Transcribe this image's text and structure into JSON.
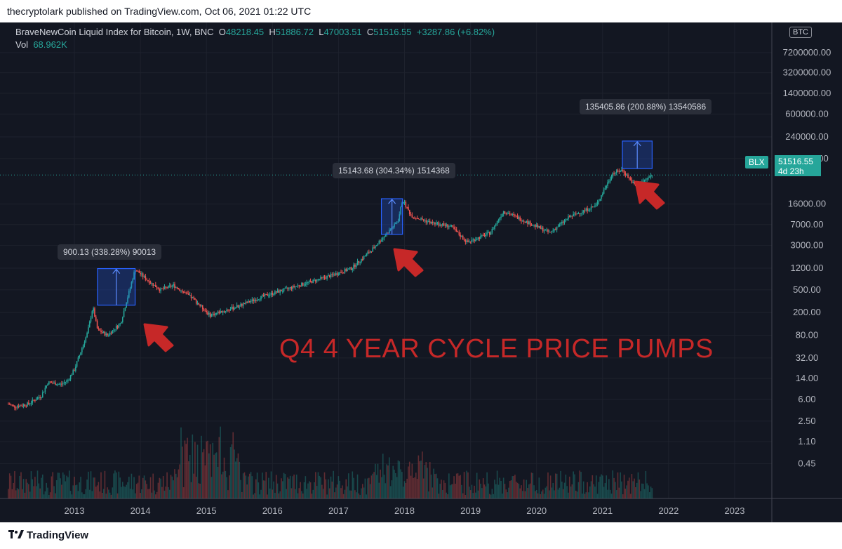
{
  "header": {
    "publisher": "thecryptolark published on TradingView.com, Oct 06, 2021 01:22 UTC"
  },
  "legend": {
    "symbol": "BraveNewCoin Liquid Index for Bitcoin, 1W, BNC",
    "o_label": "O",
    "o_value": "48218.45",
    "h_label": "H",
    "h_value": "51886.72",
    "l_label": "L",
    "l_value": "47003.51",
    "c_label": "C",
    "c_value": "51516.55",
    "change": "+3287.86 (+6.82%)",
    "vol_label": "Vol",
    "vol_value": "68.962K"
  },
  "price_axis": {
    "currency": "BTC",
    "last_symbol": "BLX",
    "last_price": "51516.55",
    "countdown": "4d 23h"
  },
  "annotations": {
    "measure_2013": "900.13 (338.28%) 90013",
    "measure_2017": "15143.68 (304.34%) 1514368",
    "measure_2021": "135405.86 (200.88%) 13540586",
    "headline": "Q4 4 YEAR CYCLE PRICE PUMPS"
  },
  "footer": {
    "brand": "TradingView"
  },
  "colors": {
    "up": "#26a69a",
    "down": "#ef5350",
    "background": "#131722",
    "box": "#2962ff",
    "arrow": "#c62828"
  },
  "chart_data": {
    "type": "candlestick",
    "title": "",
    "y_scale": "log",
    "x_ticks": [
      "2013",
      "2014",
      "2015",
      "2016",
      "2017",
      "2018",
      "2019",
      "2020",
      "2021",
      "2022",
      "2023"
    ],
    "y_ticks": [
      "7200000.00",
      "3200000.00",
      "1400000.00",
      "600000.00",
      "240000.00",
      "100000.00",
      "16000.00",
      "7000.00",
      "3000.00",
      "1200.00",
      "500.00",
      "200.00",
      "80.00",
      "32.00",
      "14.00",
      "6.00",
      "2.50",
      "1.10",
      "0.45"
    ],
    "price_path": [
      {
        "date": "2012.0",
        "price": 5
      },
      {
        "date": "2012.1",
        "price": 4.5
      },
      {
        "date": "2012.3",
        "price": 5
      },
      {
        "date": "2012.5",
        "price": 7
      },
      {
        "date": "2012.6",
        "price": 12
      },
      {
        "date": "2012.8",
        "price": 11
      },
      {
        "date": "2012.9",
        "price": 13
      },
      {
        "date": "2013.0",
        "price": 20
      },
      {
        "date": "2013.2",
        "price": 90
      },
      {
        "date": "2013.28",
        "price": 250
      },
      {
        "date": "2013.35",
        "price": 100
      },
      {
        "date": "2013.5",
        "price": 80
      },
      {
        "date": "2013.7",
        "price": 130
      },
      {
        "date": "2013.92",
        "price": 1150
      },
      {
        "date": "2014.1",
        "price": 750
      },
      {
        "date": "2014.3",
        "price": 500
      },
      {
        "date": "2014.5",
        "price": 600
      },
      {
        "date": "2014.8",
        "price": 350
      },
      {
        "date": "2015.05",
        "price": 180
      },
      {
        "date": "2015.4",
        "price": 240
      },
      {
        "date": "2015.9",
        "price": 400
      },
      {
        "date": "2016.5",
        "price": 650
      },
      {
        "date": "2016.9",
        "price": 900
      },
      {
        "date": "2017.2",
        "price": 1200
      },
      {
        "date": "2017.5",
        "price": 2500
      },
      {
        "date": "2017.9",
        "price": 8000
      },
      {
        "date": "2017.97",
        "price": 19000
      },
      {
        "date": "2018.1",
        "price": 10000
      },
      {
        "date": "2018.4",
        "price": 7500
      },
      {
        "date": "2018.7",
        "price": 6500
      },
      {
        "date": "2018.95",
        "price": 3400
      },
      {
        "date": "2019.3",
        "price": 5000
      },
      {
        "date": "2019.5",
        "price": 12000
      },
      {
        "date": "2019.9",
        "price": 7300
      },
      {
        "date": "2020.2",
        "price": 5000
      },
      {
        "date": "2020.5",
        "price": 9500
      },
      {
        "date": "2020.9",
        "price": 15000
      },
      {
        "date": "2021.15",
        "price": 55000
      },
      {
        "date": "2021.3",
        "price": 63000
      },
      {
        "date": "2021.5",
        "price": 33000
      },
      {
        "date": "2021.76",
        "price": 51516.55
      }
    ],
    "measures": [
      {
        "label": "900.13 (338.28%) 90013",
        "from_date": "2013.35",
        "to_date": "2013.92",
        "low": 270,
        "high": 1180
      },
      {
        "label": "15143.68 (304.34%) 1514368",
        "from_date": "2017.65",
        "to_date": "2017.97",
        "low": 4700,
        "high": 19800
      },
      {
        "label": "135405.86 (200.88%) 13540586",
        "from_date": "2021.3",
        "to_date": "2021.75",
        "low": 67000,
        "high": 203000
      }
    ],
    "last_price": 51516.55
  }
}
